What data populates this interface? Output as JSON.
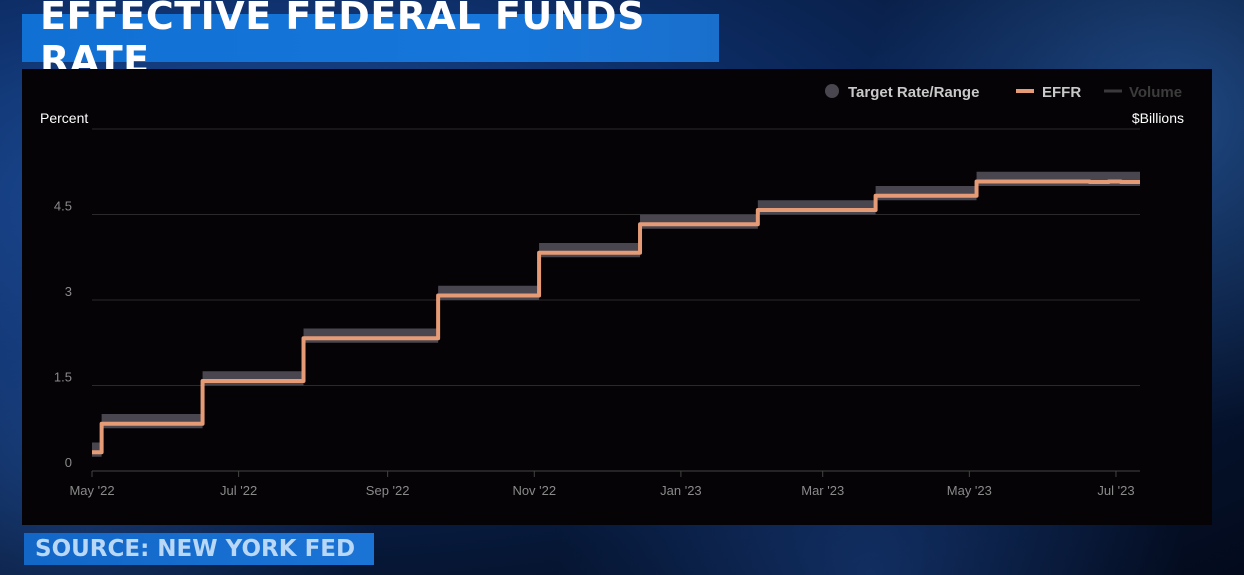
{
  "title": "EFFECTIVE FEDERAL FUNDS RATE",
  "source": "SOURCE: NEW YORK FED",
  "colors": {
    "panel_bg": "#050305",
    "target_band": "#4a4650",
    "effr_line": "#e59b76",
    "volume_line": "#3a3a3a",
    "grid": "#2a2a2a",
    "tick_text": "#8a8a8a"
  },
  "chart_data": {
    "type": "line",
    "ylabel": "Percent",
    "ylabel_right": "$Billions",
    "ylim": [
      0,
      6
    ],
    "yticks": [
      "0",
      "1.5",
      "3",
      "4.5"
    ],
    "ytick_values": [
      0,
      1.5,
      3,
      4.5
    ],
    "xticks": [
      "May '22",
      "Jul '22",
      "Sep '22",
      "Nov '22",
      "Jan '23",
      "Mar '23",
      "May '23",
      "Jul '23"
    ],
    "xtick_dates": [
      "2022-05-01",
      "2022-07-01",
      "2022-09-01",
      "2022-11-01",
      "2023-01-01",
      "2023-03-01",
      "2023-05-01",
      "2023-07-01"
    ],
    "xrange": [
      "2022-05-01",
      "2023-07-11"
    ],
    "legend": {
      "position": "top-right",
      "entries": [
        "Target Rate/Range",
        "EFFR",
        "Volume"
      ]
    },
    "grid": true,
    "series": [
      {
        "name": "Target Rate/Range",
        "kind": "band",
        "steps": [
          {
            "from": "2022-05-01",
            "low": 0.25,
            "high": 0.5
          },
          {
            "from": "2022-05-05",
            "low": 0.75,
            "high": 1.0
          },
          {
            "from": "2022-06-16",
            "low": 1.5,
            "high": 1.75
          },
          {
            "from": "2022-07-28",
            "low": 2.25,
            "high": 2.5
          },
          {
            "from": "2022-09-22",
            "low": 3.0,
            "high": 3.25
          },
          {
            "from": "2022-11-03",
            "low": 3.75,
            "high": 4.0
          },
          {
            "from": "2022-12-15",
            "low": 4.25,
            "high": 4.5
          },
          {
            "from": "2023-02-02",
            "low": 4.5,
            "high": 4.75
          },
          {
            "from": "2023-03-23",
            "low": 4.75,
            "high": 5.0
          },
          {
            "from": "2023-05-04",
            "low": 5.0,
            "high": 5.25
          }
        ]
      },
      {
        "name": "EFFR",
        "kind": "step-line",
        "steps": [
          {
            "from": "2022-05-01",
            "value": 0.33
          },
          {
            "from": "2022-05-05",
            "value": 0.83
          },
          {
            "from": "2022-06-16",
            "value": 1.58
          },
          {
            "from": "2022-07-28",
            "value": 2.33
          },
          {
            "from": "2022-09-22",
            "value": 3.08
          },
          {
            "from": "2022-11-03",
            "value": 3.83
          },
          {
            "from": "2022-12-15",
            "value": 4.33
          },
          {
            "from": "2023-02-02",
            "value": 4.58
          },
          {
            "from": "2023-03-23",
            "value": 4.83
          },
          {
            "from": "2023-05-04",
            "value": 5.08
          },
          {
            "from": "2023-06-20",
            "value": 5.07
          },
          {
            "from": "2023-06-28",
            "value": 5.08
          },
          {
            "from": "2023-07-03",
            "value": 5.07
          }
        ]
      },
      {
        "name": "Volume",
        "kind": "line",
        "values": []
      }
    ]
  }
}
